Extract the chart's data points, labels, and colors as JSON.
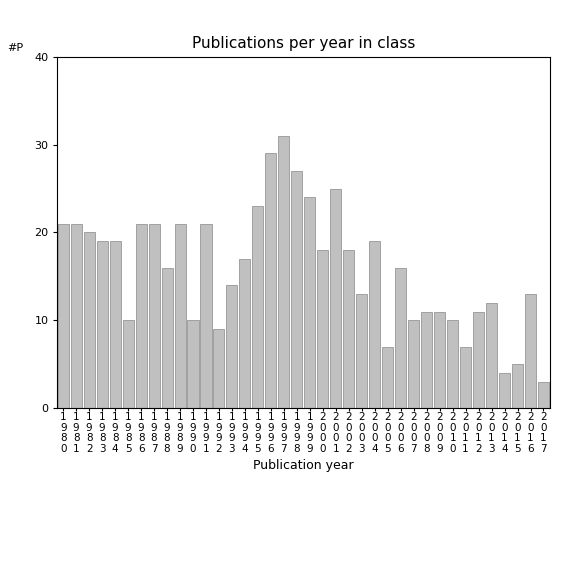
{
  "title": "Publications per year in class",
  "xlabel": "Publication year",
  "ylabel_text": "#P",
  "years": [
    "1980",
    "1981",
    "1982",
    "1983",
    "1984",
    "1985",
    "1986",
    "1987",
    "1988",
    "1989",
    "1990",
    "1991",
    "1992",
    "1993",
    "1994",
    "1995",
    "1996",
    "1997",
    "1998",
    "1999",
    "2000",
    "2001",
    "2002",
    "2003",
    "2004",
    "2005",
    "2006",
    "2007",
    "2008",
    "2009",
    "2010",
    "2011",
    "2012",
    "2013",
    "2014",
    "2015",
    "2016",
    "2017"
  ],
  "values": [
    21,
    21,
    20,
    19,
    19,
    10,
    21,
    21,
    16,
    21,
    10,
    21,
    9,
    14,
    17,
    23,
    29,
    31,
    27,
    24,
    18,
    25,
    18,
    13,
    19,
    7,
    16,
    10,
    11,
    11,
    10,
    7,
    11,
    12,
    4,
    5,
    13,
    3
  ],
  "ylim": [
    0,
    40
  ],
  "yticks": [
    0,
    10,
    20,
    30,
    40
  ],
  "bar_color": "#c0c0c0",
  "bar_edgecolor": "#888888",
  "background_color": "#ffffff",
  "title_fontsize": 11,
  "xlabel_fontsize": 9,
  "tick_fontsize": 7.5
}
